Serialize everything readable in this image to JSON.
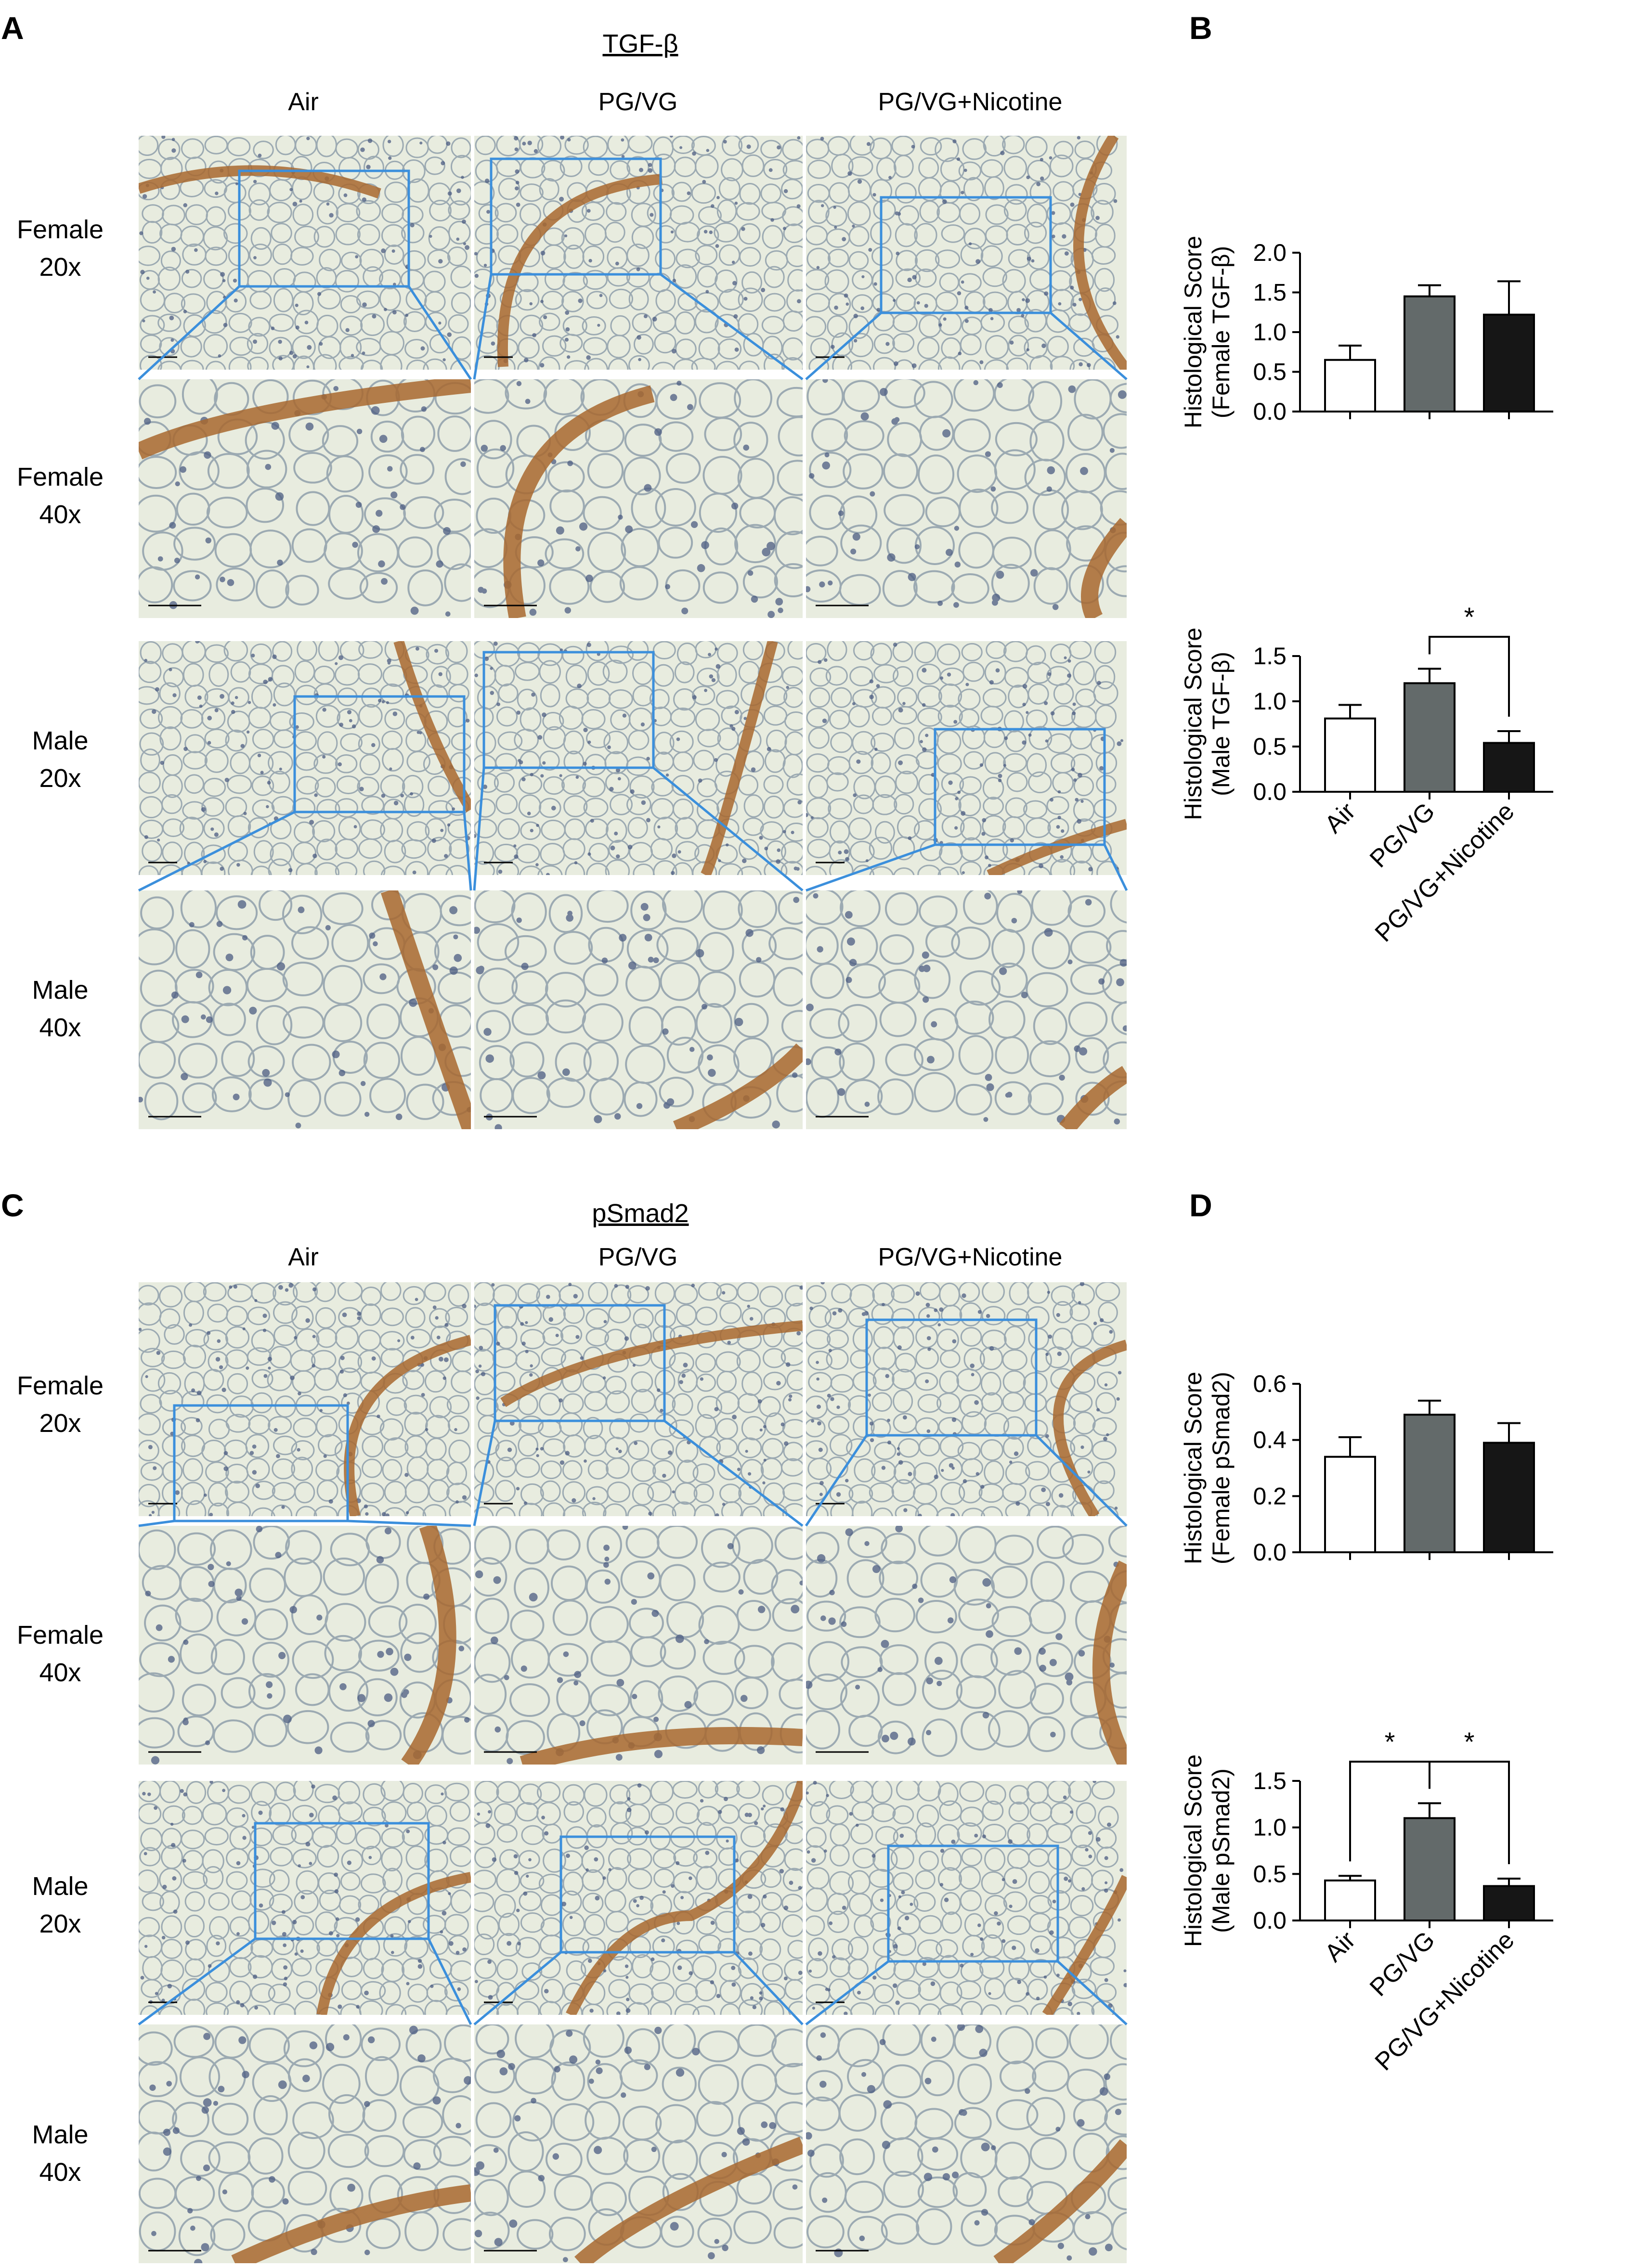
{
  "panels": {
    "A": {
      "letter": "A",
      "marker": "TGF-β",
      "columns": [
        "Air",
        "PG/VG",
        "PG/VG+Nicotine"
      ],
      "rows": [
        {
          "l1": "Female",
          "l2": "20x"
        },
        {
          "l1": "Female",
          "l2": "40x"
        },
        {
          "l1": "Male",
          "l2": "20x"
        },
        {
          "l1": "Male",
          "l2": "40x"
        }
      ]
    },
    "B": {
      "letter": "B"
    },
    "C": {
      "letter": "C",
      "marker": "pSmad2",
      "columns": [
        "Air",
        "PG/VG",
        "PG/VG+Nicotine"
      ],
      "rows": [
        {
          "l1": "Female",
          "l2": "20x"
        },
        {
          "l1": "Female",
          "l2": "40x"
        },
        {
          "l1": "Male",
          "l2": "20x"
        },
        {
          "l1": "Male",
          "l2": "40x"
        }
      ]
    },
    "D": {
      "letter": "D"
    }
  },
  "colors": {
    "air": "#ffffff",
    "pgvg": "#636a6a",
    "nicotine": "#161616",
    "zoom_box": "#3b8fdc",
    "tissue_bg": "#e8ecdf",
    "stain_brown": "#a8692f"
  },
  "chart_data": [
    {
      "type": "bar",
      "id": "B-female",
      "ylabel_line1": "Histological Score",
      "ylabel_line2": "(Female TGF-β)",
      "categories": [
        "Air",
        "PG/VG",
        "PG/VG+Nicotine"
      ],
      "show_categories": false,
      "values": [
        0.65,
        1.45,
        1.22
      ],
      "errors": [
        0.18,
        0.14,
        0.42
      ],
      "ylim": [
        0,
        2.0
      ],
      "ticks": [
        0.0,
        0.5,
        1.0,
        1.5,
        2.0
      ],
      "tick_labels": [
        "0.0",
        "0.5",
        "1.0",
        "1.5",
        "2.0"
      ],
      "significance": []
    },
    {
      "type": "bar",
      "id": "B-male",
      "ylabel_line1": "Histological Score",
      "ylabel_line2": "(Male TGF-β)",
      "categories": [
        "Air",
        "PG/VG",
        "PG/VG+Nicotine"
      ],
      "show_categories": true,
      "values": [
        0.81,
        1.2,
        0.54
      ],
      "errors": [
        0.15,
        0.16,
        0.13
      ],
      "ylim": [
        0,
        1.5
      ],
      "ticks": [
        0.0,
        0.5,
        1.0,
        1.5
      ],
      "tick_labels": [
        "0.0",
        "0.5",
        "1.0",
        "1.5"
      ],
      "significance": [
        {
          "from": 1,
          "to": 2,
          "label": "*"
        }
      ]
    },
    {
      "type": "bar",
      "id": "D-female",
      "ylabel_line1": "Histological Score",
      "ylabel_line2": "(Female pSmad2)",
      "categories": [
        "Air",
        "PG/VG",
        "PG/VG+Nicotine"
      ],
      "show_categories": false,
      "values": [
        0.34,
        0.49,
        0.39
      ],
      "errors": [
        0.07,
        0.05,
        0.07
      ],
      "ylim": [
        0,
        0.6
      ],
      "ticks": [
        0.0,
        0.2,
        0.4,
        0.6
      ],
      "tick_labels": [
        "0.0",
        "0.2",
        "0.4",
        "0.6"
      ],
      "significance": []
    },
    {
      "type": "bar",
      "id": "D-male",
      "ylabel_line1": "Histological Score",
      "ylabel_line2": "(Male pSmad2)",
      "categories": [
        "Air",
        "PG/VG",
        "PG/VG+Nicotine"
      ],
      "show_categories": true,
      "values": [
        0.43,
        1.1,
        0.37
      ],
      "errors": [
        0.05,
        0.16,
        0.08
      ],
      "ylim": [
        0,
        1.5
      ],
      "ticks": [
        0.0,
        0.5,
        1.0,
        1.5
      ],
      "tick_labels": [
        "0.0",
        "0.5",
        "1.0",
        "1.5"
      ],
      "significance": [
        {
          "from": 0,
          "to": 1,
          "label": "*"
        },
        {
          "from": 1,
          "to": 2,
          "label": "*"
        }
      ]
    }
  ]
}
